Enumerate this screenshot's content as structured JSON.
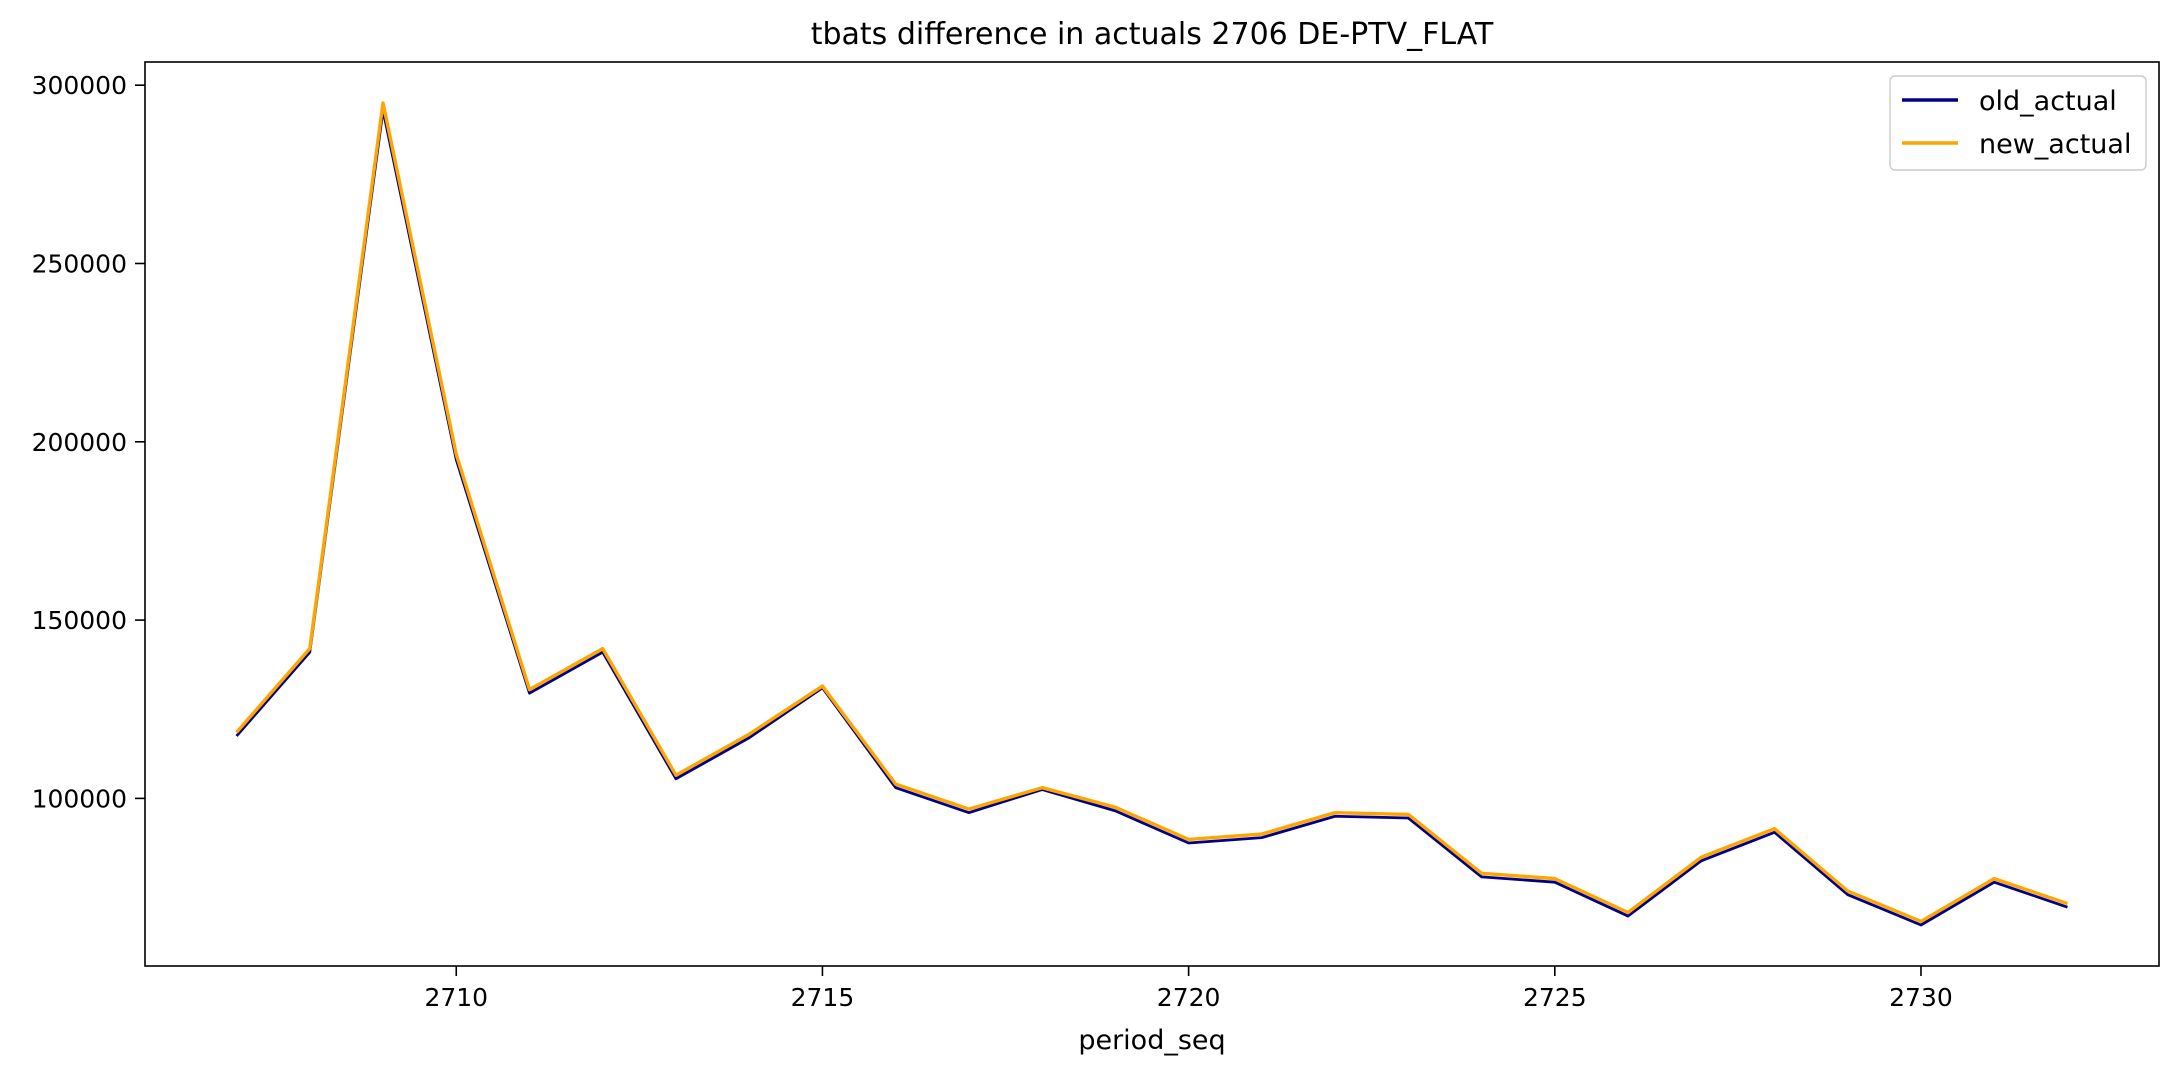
{
  "chart_data": {
    "type": "line",
    "title": "tbats difference in actuals 2706 DE-PTV_FLAT",
    "xlabel": "period_seq",
    "ylabel": "",
    "x": [
      2707,
      2708,
      2709,
      2710,
      2711,
      2712,
      2713,
      2714,
      2715,
      2716,
      2717,
      2718,
      2719,
      2720,
      2721,
      2722,
      2723,
      2724,
      2725,
      2726,
      2727,
      2728,
      2729,
      2730,
      2731,
      2732
    ],
    "series": [
      {
        "name": "old_actual",
        "color": "#00008b",
        "values": [
          117500,
          141000,
          293000,
          195000,
          129500,
          141000,
          105500,
          117000,
          131000,
          103000,
          96000,
          102500,
          96500,
          87500,
          89000,
          95000,
          94500,
          78000,
          76500,
          67000,
          82500,
          90500,
          73000,
          64500,
          76500,
          69500
        ]
      },
      {
        "name": "new_actual",
        "color": "#ffa500",
        "values": [
          118500,
          142000,
          295000,
          196500,
          130500,
          142000,
          106500,
          118000,
          131500,
          104000,
          97000,
          103000,
          97500,
          88500,
          90000,
          96000,
          95500,
          79000,
          77500,
          68000,
          83500,
          91500,
          74000,
          65500,
          77500,
          70500
        ]
      }
    ],
    "x_ticks": [
      2710,
      2715,
      2720,
      2725,
      2730
    ],
    "x_tick_labels": [
      "2710",
      "2715",
      "2720",
      "2725",
      "2730"
    ],
    "y_ticks": [
      100000,
      150000,
      200000,
      250000,
      300000
    ],
    "y_tick_labels": [
      "100000",
      "150000",
      "200000",
      "250000",
      "300000"
    ],
    "xlim": [
      2705.75,
      2733.25
    ],
    "ylim": [
      53000,
      306500
    ],
    "grid": false,
    "legend_position": "top-right"
  }
}
